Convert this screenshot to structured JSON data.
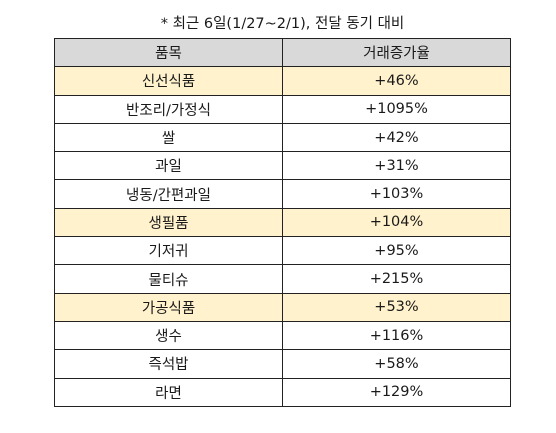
{
  "caption": "* 최근 6일(1/27~2/1), 전달 동기 대비",
  "table": {
    "headers": [
      "품목",
      "거래증가율"
    ],
    "rows": [
      {
        "item": "신선식품",
        "rate": "+46%",
        "category": true
      },
      {
        "item": "반조리/가정식",
        "rate": "+1095%",
        "category": false
      },
      {
        "item": "쌀",
        "rate": "+42%",
        "category": false
      },
      {
        "item": "과일",
        "rate": "+31%",
        "category": false
      },
      {
        "item": "냉동/간편과일",
        "rate": "+103%",
        "category": false
      },
      {
        "item": "생필품",
        "rate": "+104%",
        "category": true
      },
      {
        "item": "기저귀",
        "rate": "+95%",
        "category": false
      },
      {
        "item": "물티슈",
        "rate": "+215%",
        "category": false
      },
      {
        "item": "가공식품",
        "rate": "+53%",
        "category": true
      },
      {
        "item": "생수",
        "rate": "+116%",
        "category": false
      },
      {
        "item": "즉석밥",
        "rate": "+58%",
        "category": false
      },
      {
        "item": "라면",
        "rate": "+129%",
        "category": false
      }
    ]
  },
  "colors": {
    "header_bg": "#d9d9d9",
    "category_bg": "#fff2cc",
    "border": "#222222"
  }
}
